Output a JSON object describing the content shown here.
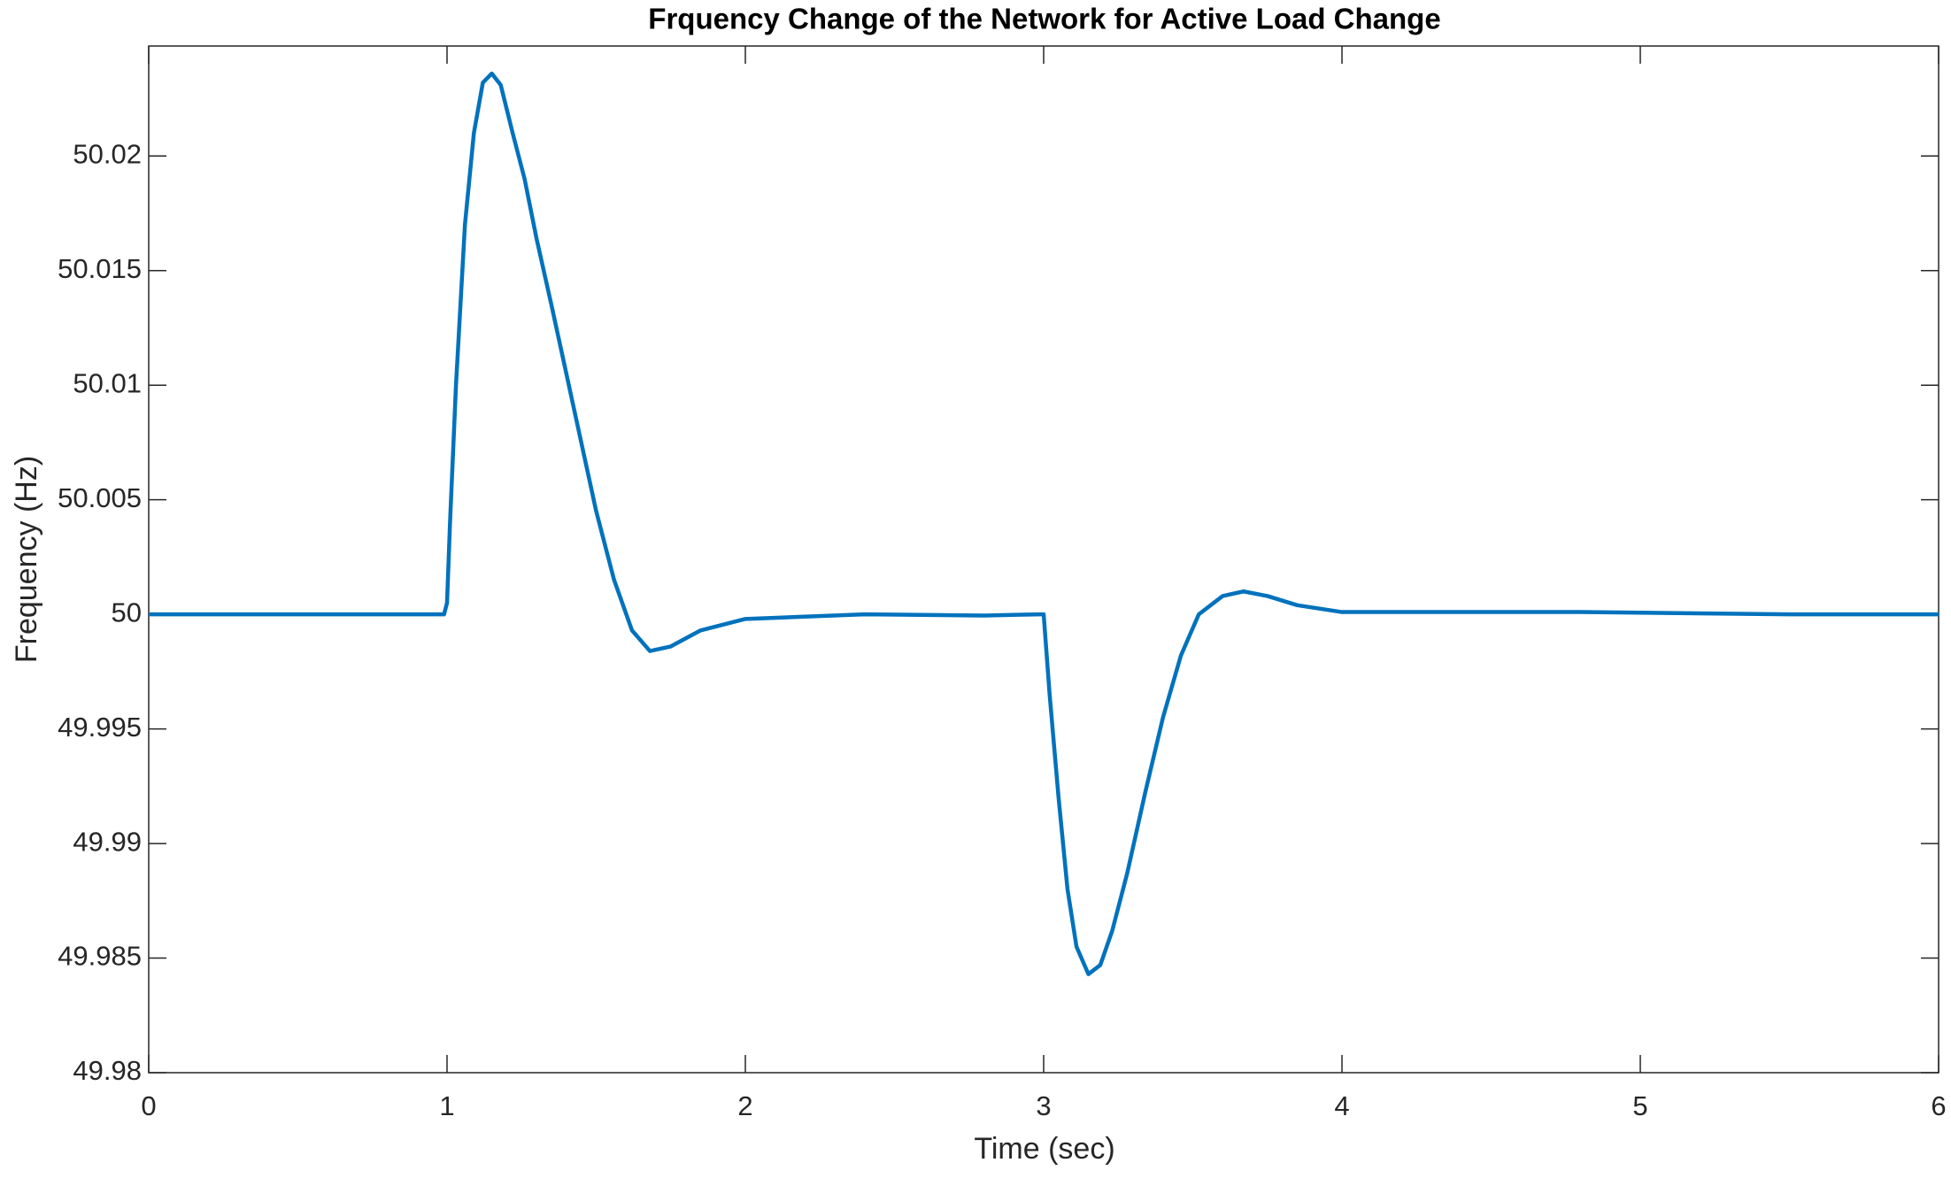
{
  "chart_data": {
    "type": "line",
    "title": "Frquency Change of the Network for Active Load Change",
    "x_label": "Time (sec)",
    "y_label": "Frequency (Hz)",
    "x": [
      0,
      0.99,
      1.0,
      1.01,
      1.03,
      1.06,
      1.09,
      1.12,
      1.15,
      1.18,
      1.22,
      1.26,
      1.3,
      1.35,
      1.4,
      1.45,
      1.5,
      1.56,
      1.62,
      1.68,
      1.75,
      1.85,
      2.0,
      2.4,
      2.8,
      2.99,
      3.0,
      3.02,
      3.05,
      3.08,
      3.11,
      3.15,
      3.19,
      3.23,
      3.28,
      3.34,
      3.4,
      3.46,
      3.52,
      3.6,
      3.67,
      3.75,
      3.85,
      4.0,
      4.8,
      5.5,
      6
    ],
    "series": [
      {
        "name": "Frequency",
        "color": "#0072bd",
        "values": [
          50,
          50,
          50.0005,
          50.004,
          50.01,
          50.017,
          50.021,
          50.0232,
          50.0236,
          50.0231,
          50.021,
          50.019,
          50.0164,
          50.0135,
          50.0105,
          50.0075,
          50.0045,
          50.0015,
          49.9993,
          49.9984,
          49.9986,
          49.9993,
          49.9998,
          50.0,
          49.99995,
          50.0,
          50.0,
          49.9965,
          49.992,
          49.988,
          49.9855,
          49.9843,
          49.9847,
          49.9862,
          49.9887,
          49.9922,
          49.9955,
          49.9982,
          50.0,
          50.0008,
          50.001,
          50.0008,
          50.0004,
          50.0001,
          50.0001,
          50.0,
          50.0
        ]
      }
    ],
    "xlim": [
      0,
      6
    ],
    "xticks": [
      0,
      1,
      2,
      3,
      4,
      5,
      6
    ],
    "ylim": [
      49.98,
      50.0248
    ],
    "yticks": [
      49.98,
      49.985,
      49.99,
      49.995,
      50,
      50.005,
      50.01,
      50.015,
      50.02
    ],
    "grid": false
  }
}
